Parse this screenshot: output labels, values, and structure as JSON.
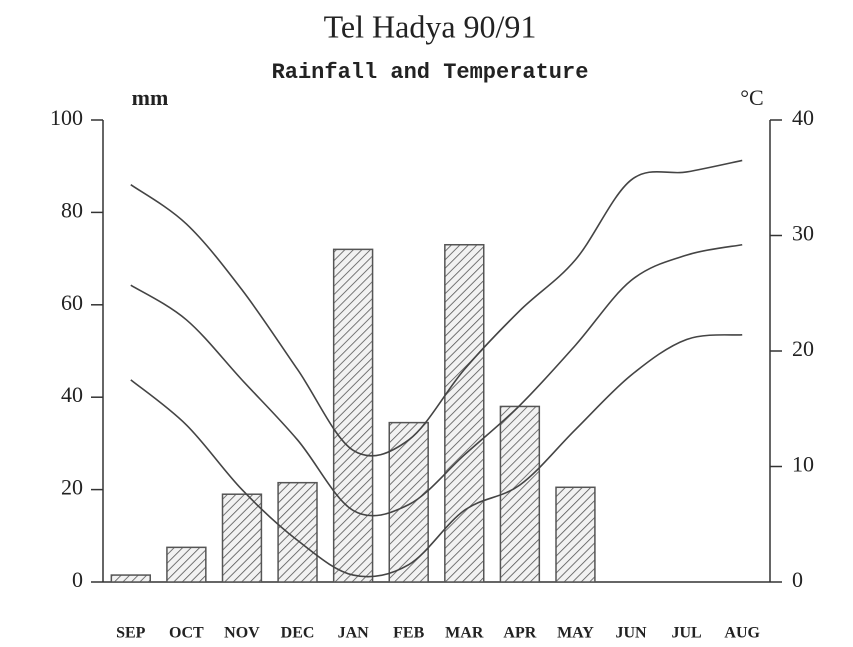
{
  "chart_data": {
    "type": "bar",
    "title": "Tel Hadya 90/91",
    "subtitle": "Rainfall and Temperature",
    "y_label": "mm",
    "y2_label": "°C",
    "categories": [
      "SEP",
      "OCT",
      "NOV",
      "DEC",
      "JAN",
      "FEB",
      "MAR",
      "APR",
      "MAY",
      "JUN",
      "JUL",
      "AUG"
    ],
    "series": [
      {
        "type": "bar",
        "color": "#555555",
        "values": [
          1.5,
          7.5,
          19,
          21.5,
          72,
          34.5,
          73,
          38,
          20.5,
          0,
          0,
          0
        ]
      },
      {
        "type": "line",
        "axis": "y2",
        "color": "#444444",
        "values": [
          34.4,
          31,
          25.3,
          18.4,
          11.4,
          12.3,
          18.4,
          23.5,
          27.9,
          34.8,
          35.5,
          36.5
        ]
      },
      {
        "type": "line",
        "axis": "y2",
        "color": "#444444",
        "values": [
          25.7,
          22.7,
          17.5,
          12.3,
          6.2,
          6.7,
          11,
          15.3,
          20.5,
          26.1,
          28.3,
          29.2
        ]
      },
      {
        "type": "line",
        "axis": "y2",
        "color": "#444444",
        "values": [
          17.5,
          13.6,
          8,
          3.6,
          0.6,
          1.5,
          6.2,
          8.4,
          13.2,
          17.9,
          21,
          21.4
        ]
      }
    ],
    "ylim": [
      0,
      100
    ],
    "yticks": [
      0,
      20,
      40,
      60,
      80,
      100
    ],
    "y2lim": [
      0,
      40
    ],
    "y2ticks": [
      0,
      10,
      20,
      30,
      40
    ]
  }
}
